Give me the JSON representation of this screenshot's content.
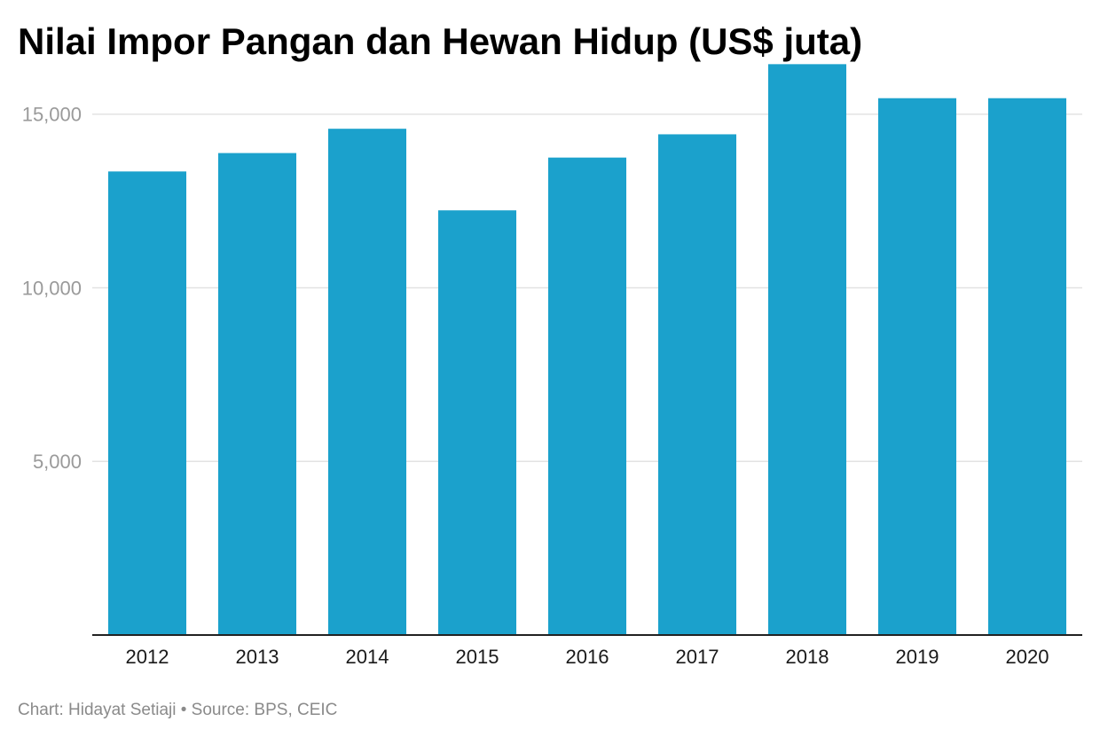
{
  "chart_data": {
    "type": "bar",
    "title": "Nilai Impor Pangan dan Hewan Hidup (US$ juta)",
    "categories": [
      "2012",
      "2013",
      "2014",
      "2015",
      "2016",
      "2017",
      "2018",
      "2019",
      "2020"
    ],
    "values": [
      13350,
      13880,
      14580,
      12230,
      13750,
      14420,
      16440,
      15460,
      15460
    ],
    "xlabel": "",
    "ylabel": "",
    "ylim": [
      0,
      16500
    ],
    "yticks": [
      5000,
      10000,
      15000
    ],
    "ytick_labels": [
      "5,000",
      "10,000",
      "15,000"
    ],
    "grid": true,
    "legend": "none",
    "bar_color": "#1ba1cc",
    "grid_color": "#e3e3e3",
    "axis_color": "#222222"
  },
  "footer": {
    "text": "Chart: Hidayat Setiaji • Source: BPS, CEIC"
  }
}
